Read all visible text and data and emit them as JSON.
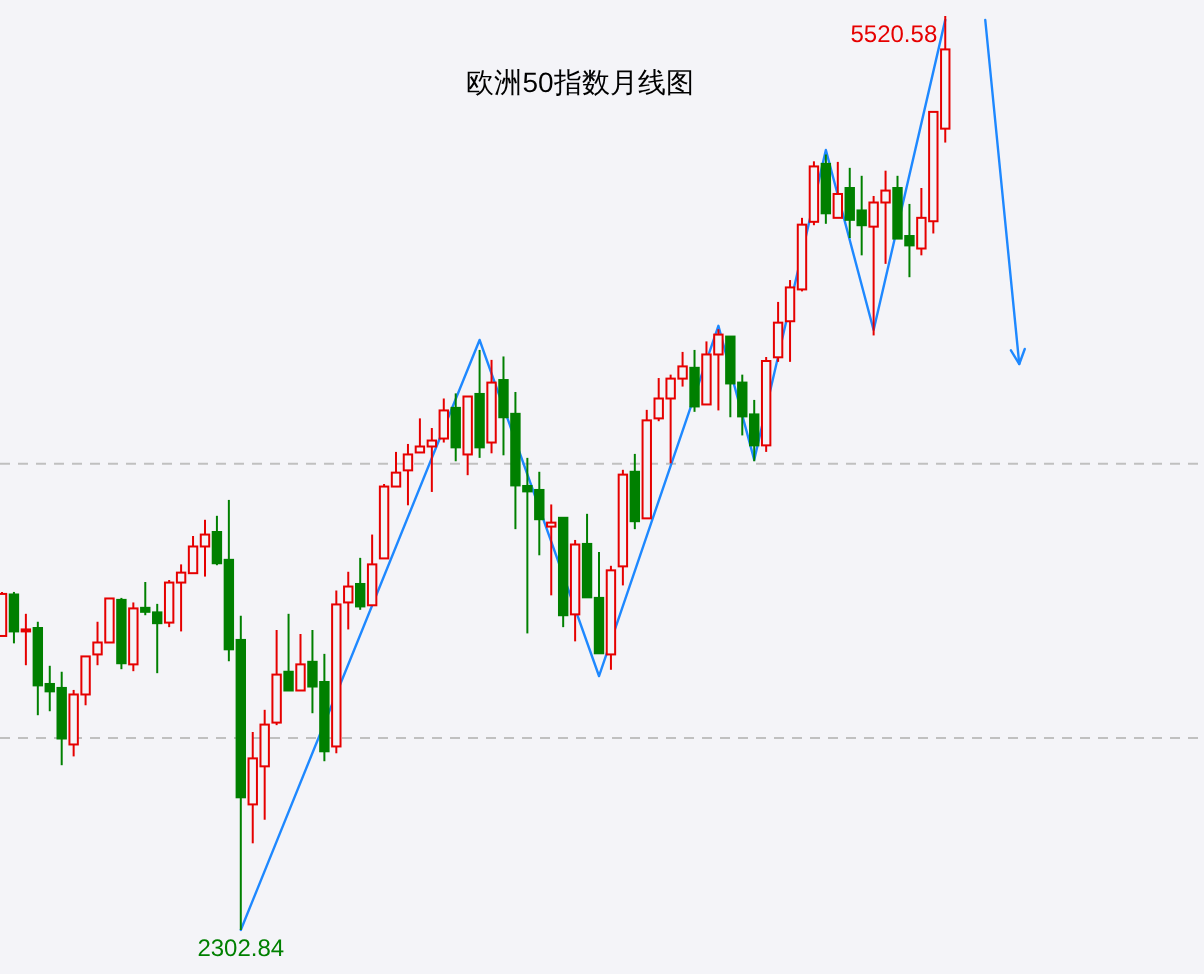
{
  "chart_data": {
    "type": "candlestick",
    "title": "欧洲50指数月线图",
    "categories": [
      null,
      null,
      null,
      null,
      null,
      null,
      null,
      null,
      null,
      null,
      null,
      null,
      null,
      null,
      null,
      null,
      null,
      null,
      null,
      null,
      null,
      null,
      null,
      null,
      null,
      null,
      null,
      null,
      null,
      null,
      null,
      null,
      null,
      null,
      null,
      null,
      null,
      null,
      null,
      null,
      null,
      null,
      null,
      null,
      null,
      null,
      null,
      null,
      null,
      null,
      null,
      null,
      null,
      null,
      null,
      null,
      null,
      null,
      null,
      null,
      null,
      null,
      null,
      null,
      null,
      null,
      null,
      null,
      null,
      null,
      null,
      null,
      null,
      null,
      null,
      null,
      null,
      null,
      null,
      null,
      null,
      null,
      null,
      null,
      null,
      null,
      null
    ],
    "ohlc": [
      [
        3338,
        3493,
        3338,
        3486
      ],
      [
        3484,
        3493,
        3312,
        3354
      ],
      [
        3354,
        3416,
        3235,
        3361
      ],
      [
        3366,
        3388,
        3059,
        3164
      ],
      [
        3169,
        3233,
        3073,
        3143
      ],
      [
        3155,
        3212,
        2883,
        2977
      ],
      [
        2956,
        3148,
        2914,
        3132
      ],
      [
        3132,
        3266,
        3094,
        3266
      ],
      [
        3273,
        3388,
        3235,
        3315
      ],
      [
        3315,
        3470,
        3315,
        3470
      ],
      [
        3465,
        3472,
        3221,
        3242
      ],
      [
        3238,
        3456,
        3214,
        3435
      ],
      [
        3437,
        3528,
        3411,
        3423
      ],
      [
        3421,
        3451,
        3207,
        3383
      ],
      [
        3385,
        3535,
        3369,
        3526
      ],
      [
        3526,
        3590,
        3354,
        3561
      ],
      [
        3559,
        3690,
        3559,
        3653
      ],
      [
        3653,
        3747,
        3547,
        3695
      ],
      [
        3704,
        3761,
        3587,
        3594
      ],
      [
        3606,
        3817,
        3249,
        3291
      ],
      [
        3324,
        3409,
        2302.84,
        2770
      ],
      [
        2745,
        3000,
        2608,
        2907
      ],
      [
        2879,
        3078,
        2691,
        3026
      ],
      [
        3033,
        3359,
        3024,
        3202
      ],
      [
        3212,
        3416,
        3146,
        3146
      ],
      [
        3146,
        3345,
        3146,
        3238
      ],
      [
        3247,
        3359,
        3066,
        3160
      ],
      [
        3176,
        3275,
        2897,
        2932
      ],
      [
        2949,
        3498,
        2925,
        3449
      ],
      [
        3456,
        3564,
        3361,
        3512
      ],
      [
        3521,
        3613,
        3430,
        3442
      ],
      [
        3446,
        3695,
        3446,
        3590
      ],
      [
        3611,
        3873,
        3611,
        3864
      ],
      [
        3864,
        3986,
        3864,
        3913
      ],
      [
        3921,
        4014,
        3798,
        3977
      ],
      [
        3984,
        4104,
        3984,
        4005
      ],
      [
        4005,
        4070,
        3845,
        4026
      ],
      [
        4033,
        4174,
        4019,
        4132
      ],
      [
        4141,
        4192,
        3953,
        4002
      ],
      [
        3977,
        4181,
        3904,
        4181
      ],
      [
        4190,
        4345,
        3965,
        4002
      ],
      [
        4019,
        4310,
        3981,
        4230
      ],
      [
        4239,
        4322,
        3974,
        4108
      ],
      [
        4120,
        4197,
        3714,
        3868
      ],
      [
        3866,
        3965,
        3347,
        3847
      ],
      [
        3852,
        3916,
        3622,
        3749
      ],
      [
        3723,
        3801,
        3481,
        3737
      ],
      [
        3754,
        3754,
        3369,
        3411
      ],
      [
        3414,
        3676,
        3319,
        3660
      ],
      [
        3662,
        3768,
        3472,
        3474
      ],
      [
        3472,
        3634,
        3275,
        3277
      ],
      [
        3273,
        3585,
        3219,
        3569
      ],
      [
        3583,
        3923,
        3516,
        3906
      ],
      [
        3916,
        3979,
        3714,
        3742
      ],
      [
        3752,
        4134,
        3752,
        4097
      ],
      [
        4104,
        4246,
        4094,
        4174
      ],
      [
        4174,
        4258,
        3946,
        4244
      ],
      [
        4244,
        4338,
        4216,
        4287
      ],
      [
        4282,
        4345,
        4127,
        4146
      ],
      [
        4153,
        4375,
        4153,
        4329
      ],
      [
        4329,
        4418,
        4132,
        4399
      ],
      [
        4392,
        4394,
        4108,
        4227
      ],
      [
        4230,
        4258,
        4044,
        4111
      ],
      [
        4118,
        4169,
        3953,
        4009
      ],
      [
        4009,
        4320,
        3986,
        4306
      ],
      [
        4319,
        4514,
        4303,
        4441
      ],
      [
        4446,
        4591,
        4303,
        4565
      ],
      [
        4558,
        4810,
        4551,
        4786
      ],
      [
        4796,
        5009,
        4784,
        4991
      ],
      [
        5000,
        5033,
        4789,
        4826
      ],
      [
        4810,
        5007,
        4810,
        4894
      ],
      [
        4915,
        4986,
        4739,
        4803
      ],
      [
        4836,
        4958,
        4678,
        4784
      ],
      [
        4779,
        4887,
        4396,
        4864
      ],
      [
        4864,
        4976,
        4648,
        4906
      ],
      [
        4915,
        4958,
        4737,
        4737
      ],
      [
        4746,
        4859,
        4601,
        4713
      ],
      [
        4702,
        4915,
        4678,
        4810
      ],
      [
        4798,
        5183,
        4755,
        5183
      ],
      [
        5124,
        5520.58,
        5075,
        5403
      ],
      null,
      null,
      null,
      null,
      null,
      null,
      null
    ],
    "colors": [
      "#e60000",
      "#008000",
      "#e60000",
      "#008000",
      "#008000",
      "#008000",
      "#e60000",
      "#e60000",
      "#e60000",
      "#e60000",
      "#008000",
      "#e60000",
      "#008000",
      "#008000",
      "#e60000",
      "#e60000",
      "#e60000",
      "#e60000",
      "#008000",
      "#008000",
      "#008000",
      "#e60000",
      "#e60000",
      "#e60000",
      "#008000",
      "#e60000",
      "#008000",
      "#008000",
      "#e60000",
      "#e60000",
      "#008000",
      "#e60000",
      "#e60000",
      "#e60000",
      "#e60000",
      "#e60000",
      "#e60000",
      "#e60000",
      "#008000",
      "#e60000",
      "#008000",
      "#e60000",
      "#008000",
      "#008000",
      "#008000",
      "#008000",
      "#e60000",
      "#008000",
      "#e60000",
      "#008000",
      "#008000",
      "#e60000",
      "#e60000",
      "#008000",
      "#e60000",
      "#e60000",
      "#e60000",
      "#e60000",
      "#008000",
      "#e60000",
      "#e60000",
      "#008000",
      "#008000",
      "#008000",
      "#e60000",
      "#e60000",
      "#e60000",
      "#e60000",
      "#e60000",
      "#008000",
      "#e60000",
      "#008000",
      "#008000",
      "#e60000",
      "#e60000",
      "#008000",
      "#008000",
      "#e60000",
      "#e60000",
      "#e60000",
      null,
      null,
      null,
      null,
      null,
      null,
      null
    ],
    "series": [
      {
        "type": "line",
        "color": "#1e88ff",
        "values": [
          null,
          null,
          null,
          null,
          null,
          null,
          null,
          null,
          null,
          null,
          null,
          null,
          null,
          null,
          null,
          null,
          null,
          null,
          null,
          null,
          2303,
          null,
          null,
          null,
          null,
          null,
          null,
          null,
          null,
          null,
          null,
          null,
          null,
          null,
          null,
          null,
          null,
          null,
          null,
          null,
          4380,
          null,
          null,
          null,
          null,
          null,
          null,
          null,
          null,
          null,
          3197,
          null,
          null,
          null,
          null,
          null,
          null,
          null,
          null,
          null,
          4430,
          null,
          null,
          3958,
          null,
          null,
          null,
          null,
          null,
          5049,
          null,
          null,
          null,
          4415,
          null,
          null,
          null,
          null,
          null,
          5507,
          null,
          null,
          null,
          null,
          null,
          null,
          null
        ]
      }
    ],
    "ref_lines": [
      {
        "axis": "y",
        "value": 3944,
        "color": "#c0c0c0",
        "line_style": "dashed"
      },
      {
        "axis": "y",
        "value": 2979,
        "color": "#c0c0c0",
        "line_style": "dashed"
      }
    ],
    "annotations": [
      "5520.58",
      "2302.84"
    ]
  }
}
